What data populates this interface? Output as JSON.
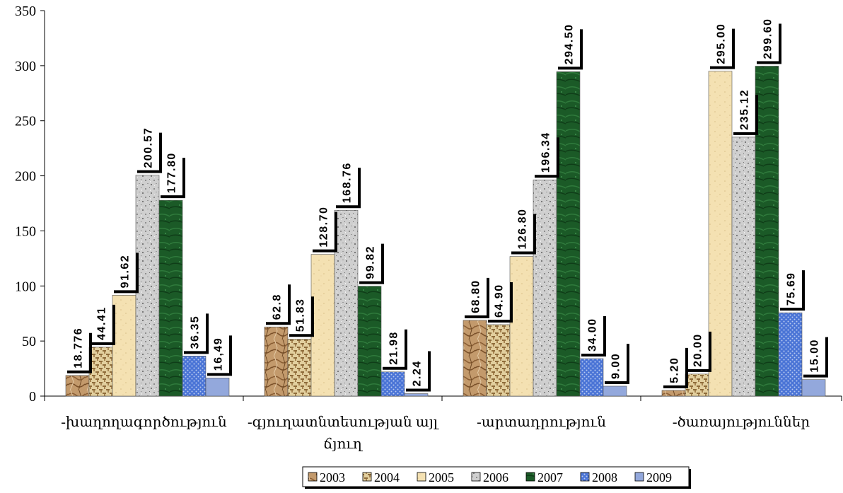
{
  "chart_data": {
    "type": "bar",
    "categories": [
      "-խաղողագործություն",
      "-գյուղատնտեսության այլ ճյուղ",
      "-արտադրություն",
      "-ծառայություններ"
    ],
    "category_lines": [
      [
        "-խաղողագործություն"
      ],
      [
        "-գյուղատնտեսության այլ",
        "ճյուղ"
      ],
      [
        "-արտադրություն"
      ],
      [
        "-ծառայություններ"
      ]
    ],
    "series": [
      {
        "name": "2003",
        "values": [
          18.776,
          62.8,
          68.8,
          5.2
        ],
        "labels": [
          "18.776",
          "62.8",
          "68.80",
          "5.20"
        ],
        "color": "#c9a47a",
        "pattern": "rock"
      },
      {
        "name": "2004",
        "values": [
          44.41,
          51.83,
          64.9,
          20.0
        ],
        "labels": [
          "44.41",
          "51.83",
          "64.90",
          "20.00"
        ],
        "color": "#d9c08a",
        "pattern": "weave"
      },
      {
        "name": "2005",
        "values": [
          91.62,
          128.7,
          126.8,
          295.0
        ],
        "labels": [
          "91.62",
          "128.70",
          "126.80",
          "295.00"
        ],
        "color": "#f3deaa",
        "pattern": "paper"
      },
      {
        "name": "2006",
        "values": [
          200.57,
          168.76,
          196.34,
          235.12
        ],
        "labels": [
          "200.57",
          "168.76",
          "196.34",
          "235.12"
        ],
        "color": "#c8c8c8",
        "pattern": "granite"
      },
      {
        "name": "2007",
        "values": [
          177.8,
          99.82,
          294.5,
          299.6
        ],
        "labels": [
          "177.80",
          "99.82",
          "294.50",
          "299.60"
        ],
        "color": "#1e5e2a",
        "pattern": "marble"
      },
      {
        "name": "2008",
        "values": [
          36.35,
          21.98,
          34.0,
          75.69
        ],
        "labels": [
          "36.35",
          "21.98",
          "34.00",
          "75.69"
        ],
        "color": "#5a80d8",
        "pattern": "dots"
      },
      {
        "name": "2009",
        "values": [
          16.49,
          2.24,
          9.0,
          15.0
        ],
        "labels": [
          "16,49",
          "2.24",
          "9.00",
          "15.00"
        ],
        "color": "#93a8dc",
        "pattern": "solid"
      }
    ],
    "ylim": [
      0,
      350
    ],
    "yticks": [
      0,
      50,
      100,
      150,
      200,
      250,
      300,
      350
    ],
    "legend_position": "bottom",
    "grid": false
  }
}
